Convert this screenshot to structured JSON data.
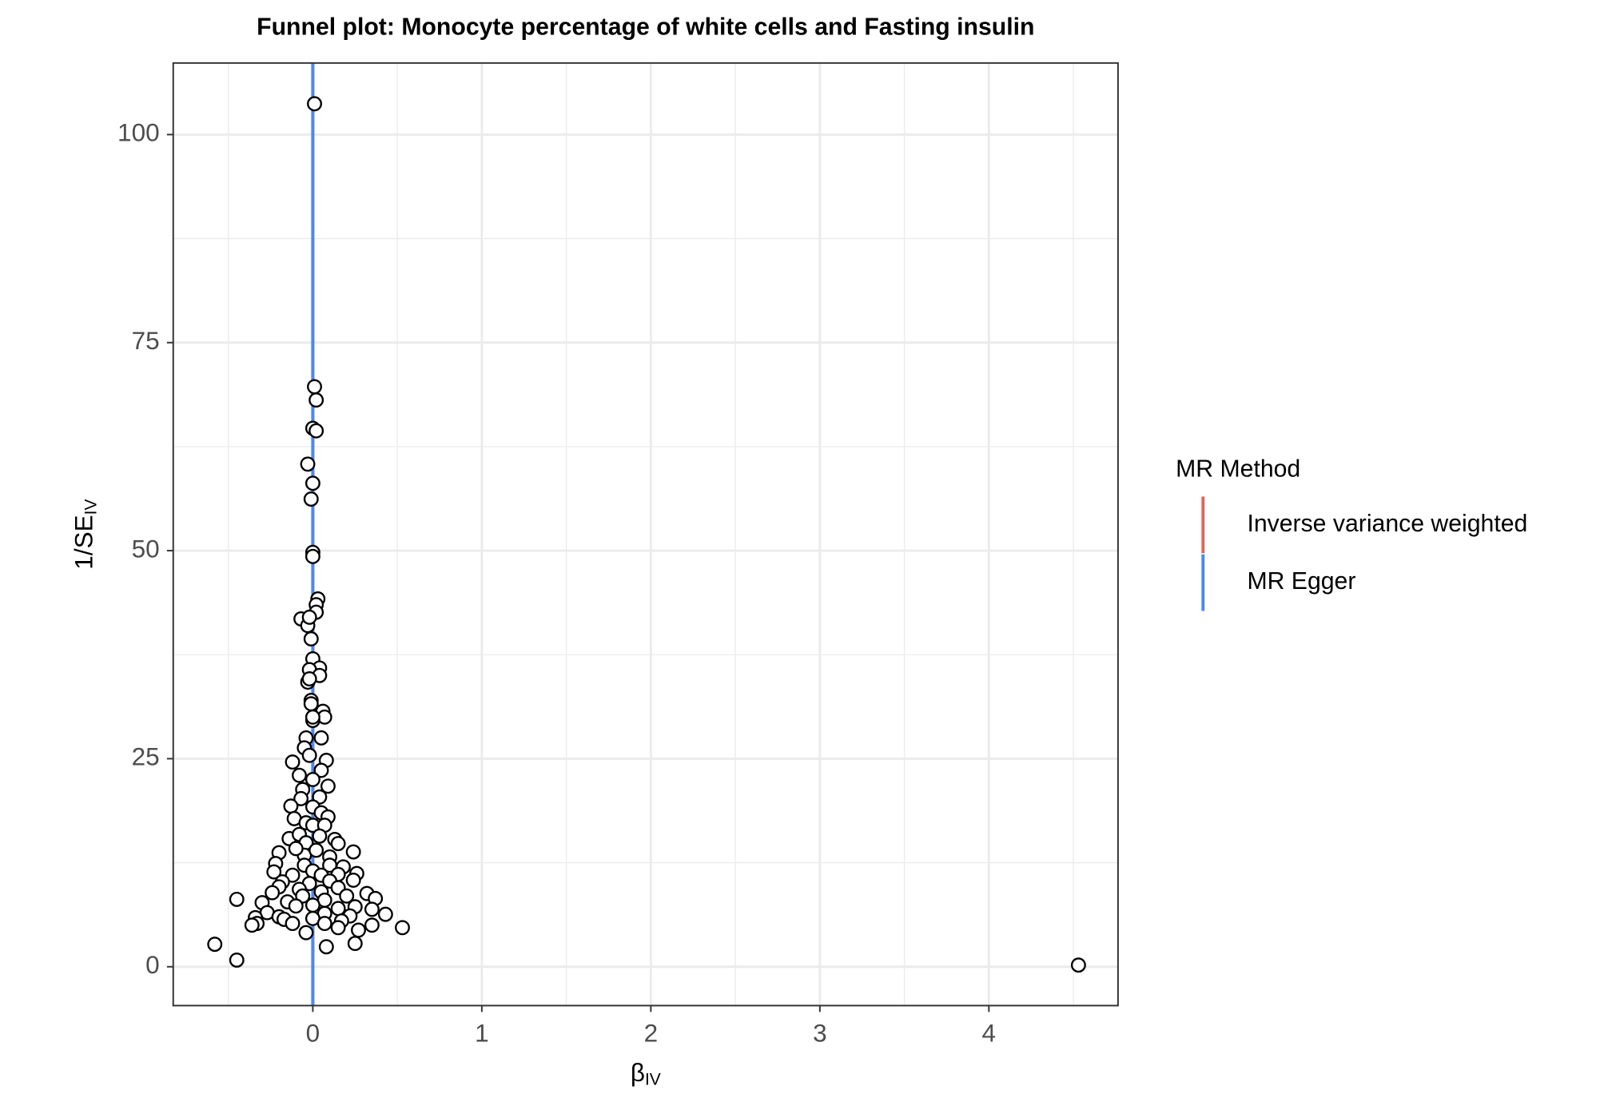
{
  "chart_data": {
    "type": "scatter",
    "title": "Funnel plot: Monocyte percentage of white cells and Fasting insulin",
    "x_label": {
      "main": "β",
      "sub": "IV"
    },
    "y_label": {
      "main": "1/SE",
      "sub": "IV"
    },
    "xlim": [
      -0.826,
      4.764
    ],
    "xticks": [
      0,
      1,
      2,
      3,
      4
    ],
    "ylim": [
      -4.67,
      108.6
    ],
    "yticks": [
      0,
      25,
      50,
      75,
      100
    ],
    "x_minor_grid": [
      -0.5,
      0.5,
      1.5,
      2.5,
      3.5,
      4.5
    ],
    "y_minor_grid": [
      12.5,
      37.5,
      62.5,
      87.5
    ],
    "grid": true,
    "point_color": "#ffffff",
    "point_edge": "#000000",
    "legend": {
      "title": "MR Method",
      "position": "right"
    },
    "lines": [
      {
        "name": "Inverse variance weighted",
        "color": "#e0665b",
        "value": 0.0
      },
      {
        "name": "MR Egger",
        "color": "#4c88f0",
        "value": 0.0
      }
    ],
    "x": [
      0.01,
      0.01,
      0.02,
      0.0,
      0.02,
      -0.03,
      0.0,
      -0.01,
      0.0,
      0.0,
      0.03,
      0.02,
      0.02,
      -0.07,
      -0.03,
      -0.02,
      -0.01,
      0.0,
      0.04,
      -0.02,
      0.04,
      -0.03,
      -0.02,
      -0.01,
      -0.01,
      0.06,
      0.07,
      0.0,
      0.0,
      0.05,
      -0.04,
      -0.05,
      -0.12,
      -0.02,
      0.08,
      0.05,
      -0.08,
      0.0,
      0.09,
      -0.06,
      0.04,
      -0.07,
      -0.13,
      0.0,
      0.05,
      0.09,
      -0.11,
      -0.04,
      0.0,
      0.07,
      -0.14,
      -0.08,
      0.04,
      0.13,
      0.15,
      -0.04,
      -0.2,
      0.24,
      0.1,
      -0.05,
      -0.1,
      0.02,
      -0.22,
      -0.05,
      0.1,
      0.18,
      -0.23,
      0.0,
      0.05,
      0.15,
      0.26,
      -0.12,
      -0.18,
      0.1,
      0.24,
      -0.02,
      -0.2,
      0.15,
      -0.08,
      0.05,
      -0.24,
      0.32,
      0.2,
      -0.06,
      -0.45,
      0.37,
      0.07,
      -0.15,
      -0.3,
      0.25,
      0.15,
      -0.1,
      0.0,
      0.35,
      -0.27,
      -0.2,
      0.43,
      0.07,
      0.22,
      -0.34,
      -0.17,
      0.0,
      0.17,
      -0.12,
      0.07,
      -0.33,
      -0.36,
      0.27,
      0.35,
      0.53,
      0.15,
      -0.04,
      0.25,
      0.08,
      -0.58,
      -0.45,
      4.53
    ],
    "values": [
      103.7,
      69.7,
      68.1,
      64.7,
      64.4,
      60.4,
      58.1,
      56.2,
      49.8,
      49.3,
      44.2,
      43.5,
      42.6,
      41.8,
      41.0,
      42.0,
      39.4,
      37.0,
      35.9,
      35.7,
      35.0,
      34.2,
      34.6,
      32.0,
      31.6,
      30.7,
      30.0,
      29.6,
      30.0,
      27.5,
      27.5,
      26.3,
      24.6,
      25.4,
      24.8,
      23.6,
      23.0,
      22.5,
      21.7,
      21.3,
      20.4,
      20.2,
      19.3,
      19.2,
      18.5,
      18.0,
      17.8,
      17.3,
      17.0,
      17.0,
      15.4,
      15.9,
      15.7,
      15.3,
      14.8,
      14.9,
      13.7,
      13.8,
      13.2,
      13.4,
      14.2,
      14.0,
      12.4,
      12.2,
      12.2,
      12.0,
      11.4,
      11.5,
      11.0,
      11.1,
      11.2,
      11.0,
      10.2,
      10.3,
      10.4,
      10.0,
      9.6,
      9.5,
      9.3,
      9.0,
      8.9,
      8.8,
      8.5,
      8.5,
      8.1,
      8.2,
      8.0,
      7.8,
      7.7,
      7.2,
      7.0,
      7.3,
      7.4,
      6.9,
      6.5,
      6.0,
      6.3,
      6.4,
      6.1,
      5.9,
      5.7,
      5.8,
      5.5,
      5.2,
      5.2,
      5.2,
      5.0,
      4.4,
      5.0,
      4.7,
      4.7,
      4.1,
      2.8,
      2.4,
      2.7,
      0.8,
      0.2
    ]
  }
}
